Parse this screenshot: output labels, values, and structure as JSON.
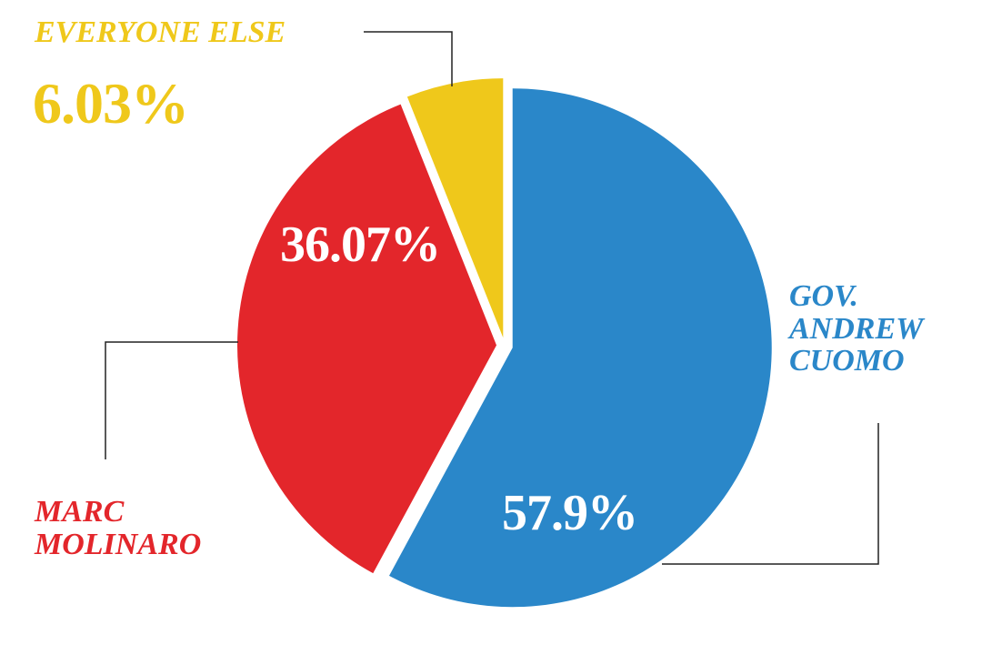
{
  "chart_data": {
    "type": "pie",
    "categories": [
      "GOV. ANDREW CUOMO",
      "MARC MOLINARO",
      "EVERYONE ELSE"
    ],
    "values": [
      57.9,
      36.07,
      6.03
    ],
    "value_labels": [
      "57.9%",
      "36.07%",
      "6.03%"
    ],
    "colors": [
      "#2a87c9",
      "#e3262b",
      "#efc81b"
    ]
  }
}
